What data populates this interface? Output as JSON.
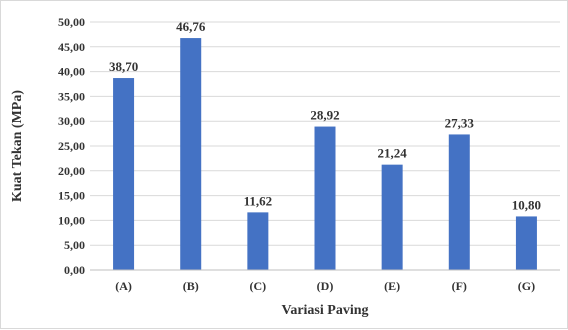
{
  "chart_data": {
    "type": "bar",
    "title": "",
    "xlabel": "Variasi Paving",
    "ylabel": "Kuat Tekan (MPa)",
    "categories": [
      "(A)",
      "(B)",
      "(C)",
      "(D)",
      "(E)",
      "(F)",
      "(G)"
    ],
    "values": [
      38.7,
      46.76,
      11.62,
      28.92,
      21.24,
      27.33,
      10.8
    ],
    "data_labels": [
      "38,70",
      "46,76",
      "11,62",
      "28,92",
      "21,24",
      "27,33",
      "10,80"
    ],
    "ylim": [
      0,
      50
    ],
    "ytick_labels": [
      "0,00",
      "5,00",
      "10,00",
      "15,00",
      "20,00",
      "25,00",
      "30,00",
      "35,00",
      "40,00",
      "45,00",
      "50,00"
    ],
    "grid": true,
    "legend": "none",
    "bar_color": "#4472c4",
    "grid_color": "#d9d9d9"
  }
}
